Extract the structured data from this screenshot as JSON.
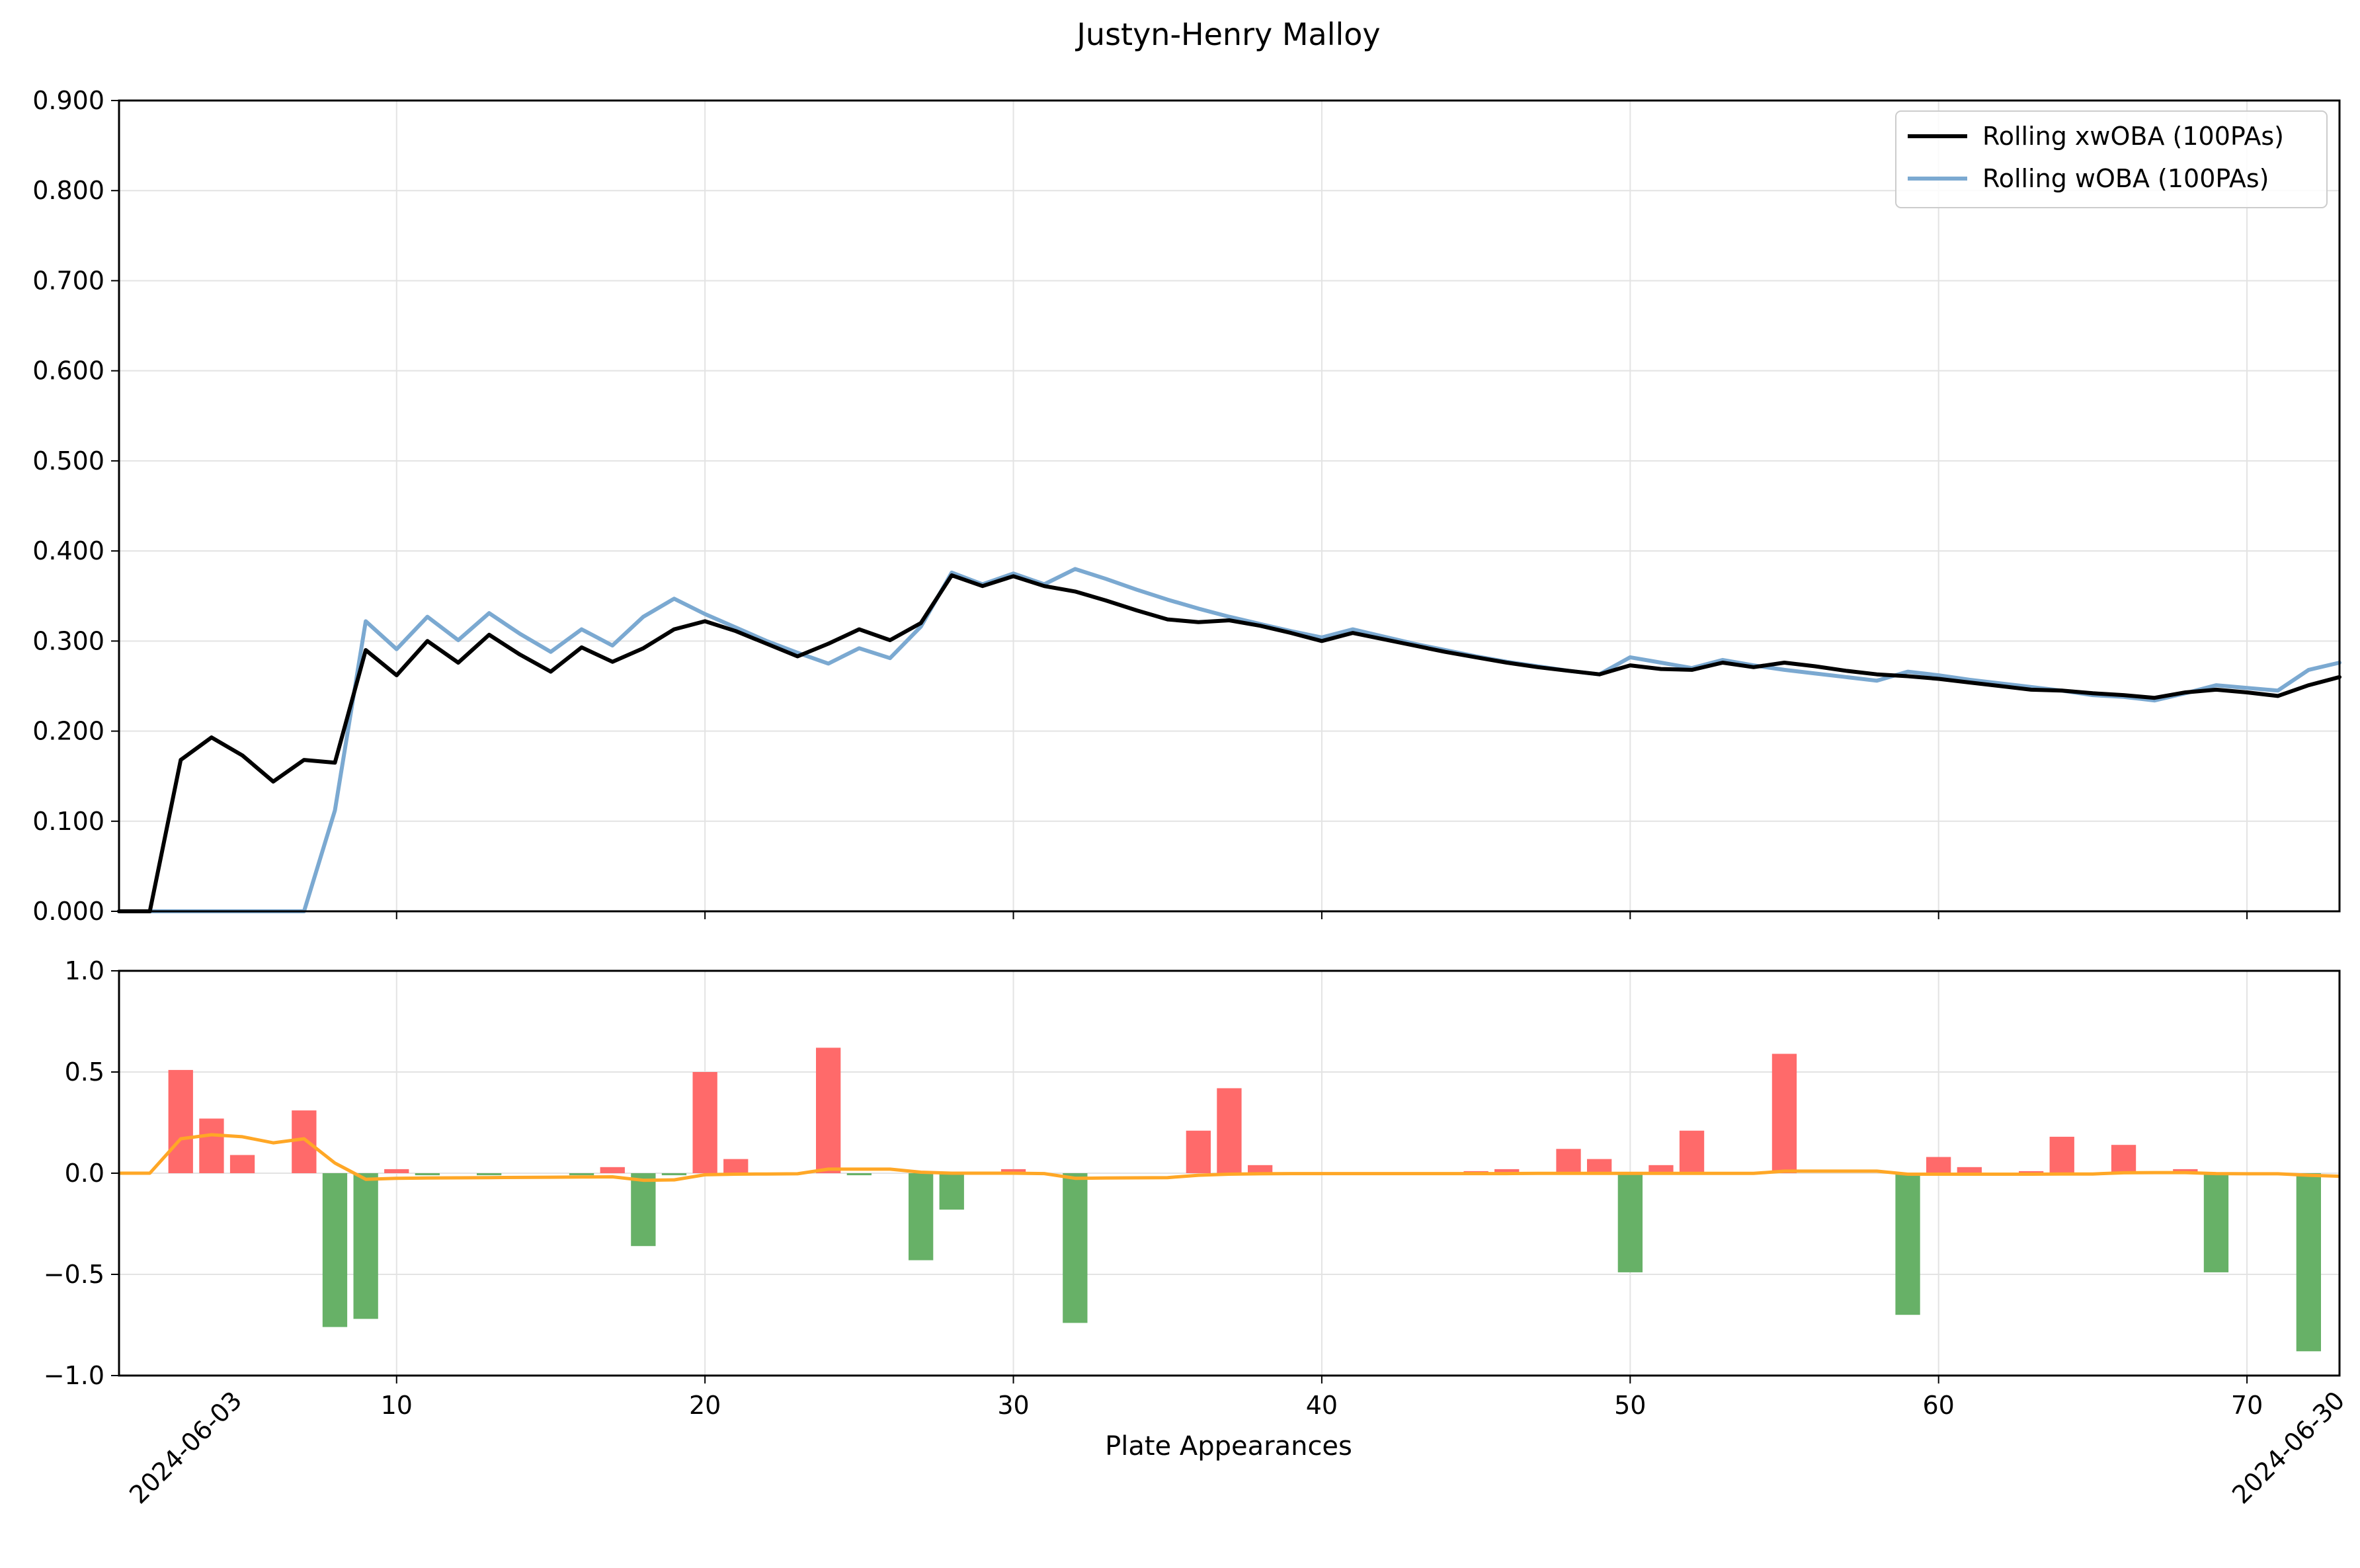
{
  "chart_data": {
    "title": "Justyn-Henry Malloy",
    "xlabel": "Plate Appearances",
    "date_labels": [
      "2024-06-03",
      "2024-06-30"
    ],
    "xlim": [
      1,
      73
    ],
    "x_ticks": [
      10,
      20,
      30,
      40,
      50,
      60,
      70
    ],
    "colors": {
      "xwoba": "#000000",
      "woba": "#7ba9d1",
      "positive": "#ff6a6a",
      "negative": "#67b167",
      "rolling_diff": "#ffa726"
    },
    "top": {
      "type": "line",
      "ylim": [
        0,
        0.9
      ],
      "y_ticks": [
        "0.000",
        "0.100",
        "0.200",
        "0.300",
        "0.400",
        "0.500",
        "0.600",
        "0.700",
        "0.800",
        "0.900"
      ],
      "grid": true,
      "legend": "top-right",
      "series": [
        {
          "name": "Rolling xwOBA (100PAs)",
          "x": [
            1,
            2,
            3,
            4,
            5,
            6,
            7,
            8,
            9,
            10,
            11,
            12,
            13,
            14,
            15,
            16,
            17,
            18,
            19,
            20,
            21,
            22,
            23,
            24,
            25,
            26,
            27,
            28,
            29,
            30,
            31,
            32,
            33,
            34,
            35,
            36,
            37,
            38,
            39,
            40,
            41,
            42,
            43,
            44,
            45,
            46,
            47,
            48,
            49,
            50,
            51,
            52,
            53,
            54,
            55,
            56,
            57,
            58,
            59,
            60,
            61,
            62,
            63,
            64,
            65,
            66,
            67,
            68,
            69,
            70,
            71,
            72,
            73
          ],
          "values": [
            0.0,
            0.0,
            0.168,
            0.193,
            0.173,
            0.144,
            0.168,
            0.165,
            0.29,
            0.262,
            0.3,
            0.276,
            0.307,
            0.285,
            0.266,
            0.293,
            0.277,
            0.292,
            0.313,
            0.322,
            0.311,
            0.297,
            0.283,
            0.297,
            0.313,
            0.301,
            0.32,
            0.373,
            0.361,
            0.372,
            0.361,
            0.355,
            0.345,
            0.334,
            0.324,
            0.321,
            0.323,
            0.317,
            0.309,
            0.3,
            0.309,
            0.302,
            0.295,
            0.288,
            0.282,
            0.276,
            0.271,
            0.267,
            0.263,
            0.273,
            0.269,
            0.268,
            0.276,
            0.271,
            0.276,
            0.272,
            0.267,
            0.263,
            0.261,
            0.258,
            0.254,
            0.25,
            0.246,
            0.245,
            0.242,
            0.24,
            0.237,
            0.243,
            0.246,
            0.243,
            0.239,
            0.251,
            0.26
          ]
        },
        {
          "name": "Rolling wOBA (100PAs)",
          "x": [
            1,
            2,
            3,
            4,
            5,
            6,
            7,
            8,
            9,
            10,
            11,
            12,
            13,
            14,
            15,
            16,
            17,
            18,
            19,
            20,
            21,
            22,
            23,
            24,
            25,
            26,
            27,
            28,
            29,
            30,
            31,
            32,
            33,
            34,
            35,
            36,
            37,
            38,
            39,
            40,
            41,
            42,
            43,
            44,
            45,
            46,
            47,
            48,
            49,
            50,
            51,
            52,
            53,
            54,
            55,
            56,
            57,
            58,
            59,
            60,
            61,
            62,
            63,
            64,
            65,
            66,
            67,
            68,
            69,
            70,
            71,
            72,
            73
          ],
          "values": [
            0.0,
            0.0,
            0.0,
            0.0,
            0.0,
            0.0,
            0.0,
            0.112,
            0.322,
            0.291,
            0.327,
            0.301,
            0.331,
            0.308,
            0.288,
            0.313,
            0.295,
            0.327,
            0.347,
            0.33,
            0.315,
            0.3,
            0.287,
            0.275,
            0.292,
            0.281,
            0.316,
            0.376,
            0.363,
            0.375,
            0.363,
            0.38,
            0.369,
            0.357,
            0.346,
            0.336,
            0.327,
            0.319,
            0.311,
            0.304,
            0.313,
            0.305,
            0.297,
            0.29,
            0.283,
            0.277,
            0.272,
            0.267,
            0.263,
            0.282,
            0.276,
            0.27,
            0.279,
            0.273,
            0.268,
            0.264,
            0.26,
            0.256,
            0.266,
            0.262,
            0.257,
            0.253,
            0.249,
            0.245,
            0.24,
            0.238,
            0.234,
            0.242,
            0.251,
            0.248,
            0.245,
            0.268,
            0.276
          ]
        }
      ]
    },
    "bottom": {
      "type": "bar",
      "ylim": [
        -1,
        1
      ],
      "y_ticks": [
        "1.0",
        "0.5",
        "0.0",
        "−0.5",
        "−1.0"
      ],
      "y_tick_values": [
        1.0,
        0.5,
        0.0,
        -0.5,
        -1.0
      ],
      "grid": true,
      "x": [
        3,
        4,
        5,
        7,
        8,
        9,
        10,
        11,
        13,
        16,
        17,
        18,
        19,
        20,
        21,
        24,
        25,
        27,
        28,
        30,
        32,
        36,
        37,
        38,
        45,
        46,
        48,
        49,
        50,
        51,
        52,
        55,
        59,
        60,
        61,
        63,
        64,
        66,
        68,
        69,
        72
      ],
      "values": [
        0.51,
        0.27,
        0.09,
        0.31,
        -0.76,
        -0.72,
        0.02,
        -0.01,
        -0.01,
        -0.01,
        0.03,
        -0.36,
        -0.01,
        0.5,
        0.07,
        0.62,
        -0.01,
        -0.43,
        -0.18,
        0.02,
        -0.74,
        0.21,
        0.42,
        0.04,
        0.01,
        0.02,
        0.12,
        0.07,
        -0.49,
        0.04,
        0.21,
        0.59,
        -0.7,
        0.08,
        0.03,
        0.01,
        0.18,
        0.14,
        0.02,
        -0.49,
        -0.88
      ],
      "rolling_line": {
        "x": [
          1,
          2,
          3,
          4,
          5,
          6,
          7,
          8,
          9,
          10,
          11,
          12,
          13,
          14,
          15,
          16,
          17,
          18,
          19,
          20,
          21,
          22,
          23,
          24,
          25,
          26,
          27,
          28,
          29,
          30,
          31,
          32,
          33,
          34,
          35,
          36,
          37,
          38,
          39,
          40,
          41,
          42,
          43,
          44,
          45,
          46,
          47,
          48,
          49,
          50,
          51,
          52,
          53,
          54,
          55,
          56,
          57,
          58,
          59,
          60,
          61,
          62,
          63,
          64,
          65,
          66,
          67,
          68,
          69,
          70,
          71,
          72,
          73
        ],
        "values": [
          0.0,
          0.0,
          0.17,
          0.19,
          0.18,
          0.15,
          0.17,
          0.05,
          -0.03,
          -0.025,
          -0.024,
          -0.023,
          -0.022,
          -0.021,
          -0.02,
          -0.019,
          -0.018,
          -0.035,
          -0.033,
          -0.008,
          -0.005,
          -0.004,
          -0.003,
          0.02,
          0.02,
          0.02,
          0.005,
          0.0,
          0.0,
          0.0,
          -0.002,
          -0.025,
          -0.024,
          -0.023,
          -0.022,
          -0.01,
          -0.005,
          -0.003,
          -0.002,
          -0.002,
          -0.002,
          -0.002,
          -0.002,
          -0.002,
          -0.002,
          -0.002,
          -0.001,
          -0.001,
          -0.001,
          -0.001,
          -0.001,
          -0.001,
          -0.001,
          -0.001,
          0.01,
          0.01,
          0.01,
          0.01,
          -0.005,
          -0.005,
          -0.005,
          -0.005,
          -0.005,
          -0.004,
          -0.004,
          0.002,
          0.003,
          0.003,
          -0.002,
          -0.003,
          -0.003,
          -0.01,
          -0.015
        ]
      }
    }
  }
}
